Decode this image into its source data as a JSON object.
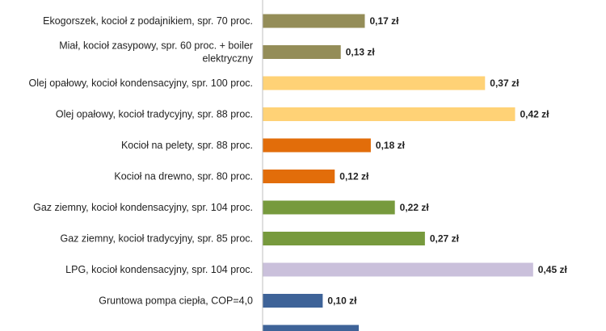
{
  "chart_data": {
    "type": "bar",
    "orientation": "horizontal",
    "categories": [
      "Ekogorszek, kocioł z podajnikiem, spr. 70 proc.",
      "Miał, kocioł zasypowy, spr. 60 proc. + boiler elektryczny",
      "Olej opałowy, kocioł kondensacyjny, spr. 100 proc.",
      "Olej opałowy, kocioł tradycyjny, spr. 88 proc.",
      "Kocioł na pelety, spr. 88 proc.",
      "Kocioł na drewno, spr. 80 proc.",
      "Gaz ziemny, kocioł kondensacyjny, spr. 104 proc.",
      "Gaz ziemny, kocioł tradycyjny, spr. 85 proc.",
      "LPG, kocioł kondensacyjny, spr. 104 proc.",
      "Gruntowa pompa ciepła, COP=4,0",
      ""
    ],
    "category_label_lines": [
      [
        "Ekogorszek, kocioł z podajnikiem, spr. 70 proc."
      ],
      [
        "Miał, kocioł zasypowy, spr. 60 proc. + boiler",
        "elektryczny"
      ],
      [
        "Olej opałowy, kocioł kondensacyjny, spr. 100 proc."
      ],
      [
        "Olej opałowy, kocioł tradycyjny, spr. 88 proc."
      ],
      [
        "Kocioł na pelety, spr. 88 proc."
      ],
      [
        "Kocioł na drewno, spr. 80 proc."
      ],
      [
        "Gaz ziemny, kocioł kondensacyjny, spr. 104 proc."
      ],
      [
        "Gaz ziemny, kocioł tradycyjny, spr. 85 proc."
      ],
      [
        "LPG, kocioł kondensacyjny, spr. 104 proc."
      ],
      [
        "Gruntowa pompa ciepła, COP=4,0"
      ],
      []
    ],
    "values": [
      0.17,
      0.13,
      0.37,
      0.42,
      0.18,
      0.12,
      0.22,
      0.27,
      0.45,
      0.1,
      0.16
    ],
    "value_labels": [
      "0,17 zł",
      "0,13 zł",
      "0,37 zł",
      "0,42 zł",
      "0,18 zł",
      "0,12 zł",
      "0,22 zł",
      "0,27 zł",
      "0,45 zł",
      "0,10 zł",
      ""
    ],
    "colors": [
      "#948D58",
      "#948D58",
      "#FFD276",
      "#FFD276",
      "#E26D0A",
      "#E26D0A",
      "#779A3D",
      "#779A3D",
      "#CAC0DB",
      "#3E6398",
      "#3E6398"
    ],
    "xlim": [
      0,
      0.5
    ],
    "title": "",
    "xlabel": "",
    "ylabel": "",
    "grid": false,
    "legend": "none"
  }
}
